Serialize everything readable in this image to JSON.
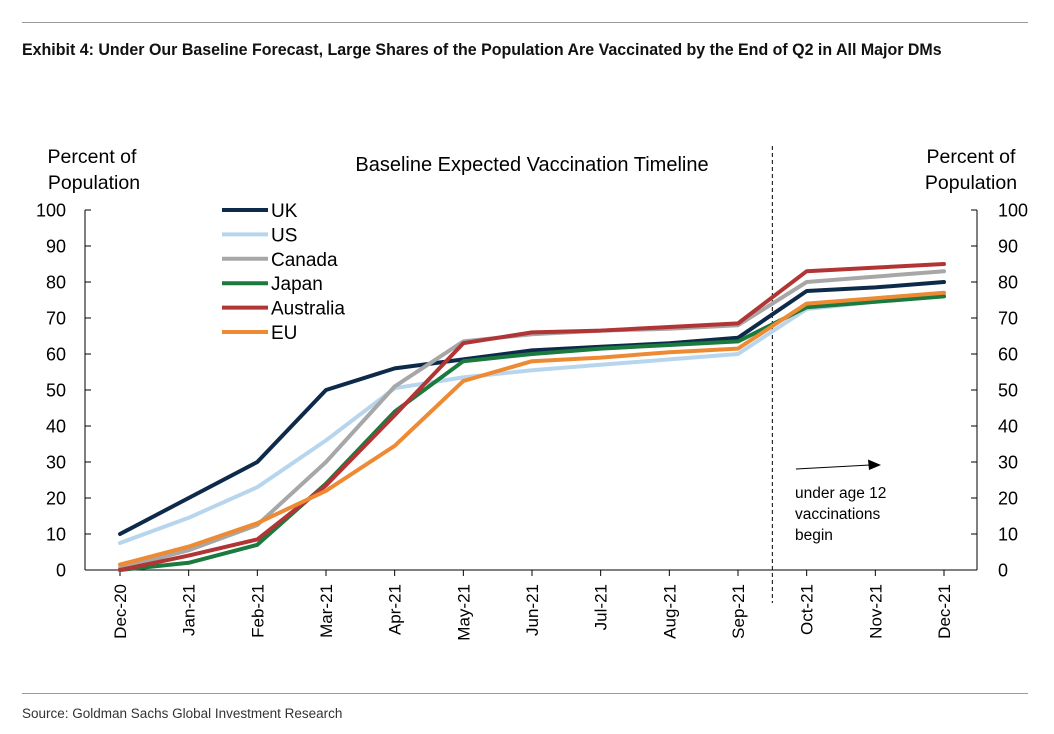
{
  "title": "Exhibit 4: Under Our Baseline Forecast, Large Shares of the Population Are Vaccinated by the End of Q2 in All Major DMs",
  "source": "Source: Goldman Sachs Global Investment Research",
  "chart_data": {
    "type": "line",
    "title": "Baseline Expected Vaccination Timeline",
    "ylabel_left": "Percent of Population",
    "ylabel_right": "Percent of Population",
    "ylim": [
      0,
      100
    ],
    "yticks": [
      0,
      10,
      20,
      30,
      40,
      50,
      60,
      70,
      80,
      90,
      100
    ],
    "categories": [
      "Dec-20",
      "Jan-21",
      "Feb-21",
      "Mar-21",
      "Apr-21",
      "May-21",
      "Jun-21",
      "Jul-21",
      "Aug-21",
      "Sep-21",
      "Oct-21",
      "Nov-21",
      "Dec-21"
    ],
    "legend_position": "top-left",
    "grid": false,
    "series": [
      {
        "name": "UK",
        "color": "#0e2a4a",
        "values": [
          10,
          20,
          30,
          50,
          56,
          58.5,
          61,
          62,
          63,
          64.5,
          77.5,
          78.5,
          80
        ]
      },
      {
        "name": "US",
        "color": "#b7d6ee",
        "values": [
          7.5,
          14.5,
          23,
          36,
          50.5,
          53.5,
          55.5,
          57,
          58.5,
          60,
          72.5,
          74.5,
          76.5
        ]
      },
      {
        "name": "Canada",
        "color": "#a7a7a7",
        "values": [
          0.5,
          5.5,
          12.5,
          30,
          51,
          63.5,
          65.5,
          66.5,
          67,
          68,
          80,
          81.5,
          83
        ]
      },
      {
        "name": "Japan",
        "color": "#1b7a3e",
        "values": [
          0,
          2,
          7,
          24,
          44,
          58,
          60,
          61.5,
          62.5,
          63.5,
          73,
          74.5,
          76
        ]
      },
      {
        "name": "Australia",
        "color": "#b23535",
        "values": [
          0,
          4,
          8.5,
          23.5,
          43,
          63,
          66,
          66.5,
          67.5,
          68.5,
          83,
          84,
          85
        ]
      },
      {
        "name": "EU",
        "color": "#ee8a33",
        "values": [
          1.5,
          6.5,
          13,
          22,
          34.5,
          52.5,
          58,
          59,
          60.5,
          61.5,
          74,
          75.5,
          77
        ]
      }
    ],
    "divider_after": "Sep-21",
    "annotation": {
      "text": [
        "under age 12",
        "vaccinations",
        "begin"
      ],
      "arrow": "right"
    }
  }
}
